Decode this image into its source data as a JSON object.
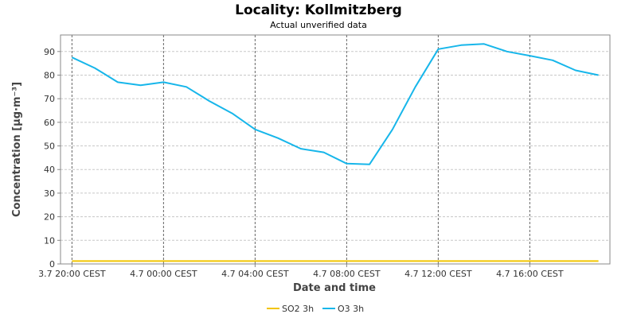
{
  "chart_data": {
    "type": "line",
    "title": "Locality: Kollmitzberg",
    "subtitle": "Actual unverified data",
    "xlabel": "Date and time",
    "ylabel": "Concentration [µg·m⁻³]",
    "ylim": [
      0,
      97
    ],
    "yticks": [
      0,
      10,
      20,
      30,
      40,
      50,
      60,
      70,
      80,
      90
    ],
    "xticks": [
      {
        "hour": 0,
        "label": "3.7 20:00 CEST"
      },
      {
        "hour": 4,
        "label": "4.7 00:00 CEST"
      },
      {
        "hour": 8,
        "label": "4.7 04:00 CEST"
      },
      {
        "hour": 12,
        "label": "4.7 08:00 CEST"
      },
      {
        "hour": 16,
        "label": "4.7 12:00 CEST"
      },
      {
        "hour": 20,
        "label": "4.7 16:00 CEST"
      }
    ],
    "xrange_hours": [
      -0.5,
      23.5
    ],
    "grid": true,
    "legend_position": "bottom-center",
    "series": [
      {
        "name": "SO2 3h",
        "color": "#f2c500",
        "x": [
          0,
          23
        ],
        "values": [
          1.2,
          1.2
        ]
      },
      {
        "name": "O3 3h",
        "color": "#17b6ea",
        "x": [
          0,
          1,
          2,
          3,
          4,
          5,
          6,
          7,
          8,
          9,
          10,
          11,
          12,
          13,
          14,
          15,
          16,
          17,
          18,
          19,
          20,
          21,
          22,
          23
        ],
        "values": [
          87.5,
          83,
          77,
          75.7,
          77,
          75,
          69,
          63.8,
          57,
          53.3,
          48.8,
          47.3,
          42.5,
          42.2,
          57,
          75,
          91,
          92.7,
          93.2,
          90,
          88.2,
          86.3,
          82,
          80
        ]
      }
    ]
  }
}
